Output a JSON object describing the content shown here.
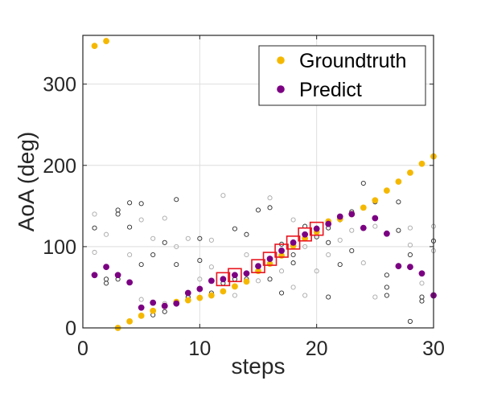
{
  "chart_data": {
    "type": "scatter",
    "xlabel": "steps",
    "ylabel": "AoA (deg)",
    "xlim": [
      0,
      30
    ],
    "ylim": [
      0,
      360
    ],
    "xticks": [
      "0",
      "10",
      "20",
      "30"
    ],
    "yticks": [
      "0",
      "100",
      "200",
      "300"
    ],
    "grid": true,
    "legend_position": "top-right",
    "series": [
      {
        "name": "Groundtruth",
        "color": "#F5B800",
        "marker": "filled-circle",
        "points": [
          [
            1,
            347
          ],
          [
            2,
            353
          ],
          [
            3,
            0
          ],
          [
            4,
            8
          ],
          [
            5,
            15
          ],
          [
            6,
            21
          ],
          [
            7,
            27
          ],
          [
            8,
            32
          ],
          [
            9,
            34
          ],
          [
            10,
            37
          ],
          [
            11,
            40
          ],
          [
            12,
            45
          ],
          [
            13,
            51
          ],
          [
            14,
            57
          ],
          [
            15,
            70
          ],
          [
            16,
            79
          ],
          [
            17,
            89
          ],
          [
            18,
            101
          ],
          [
            19,
            110
          ],
          [
            20,
            118
          ],
          [
            21,
            131
          ],
          [
            22,
            134
          ],
          [
            23,
            140
          ],
          [
            24,
            148
          ],
          [
            25,
            157
          ],
          [
            26,
            169
          ],
          [
            27,
            180
          ],
          [
            28,
            191
          ],
          [
            29,
            202
          ],
          [
            30,
            211
          ]
        ]
      },
      {
        "name": "Predict",
        "color": "#7B0082",
        "marker": "filled-circle",
        "points": [
          [
            1,
            65
          ],
          [
            2,
            75
          ],
          [
            3,
            65
          ],
          [
            4,
            56
          ],
          [
            5,
            25
          ],
          [
            6,
            31
          ],
          [
            7,
            27
          ],
          [
            8,
            30
          ],
          [
            9,
            43
          ],
          [
            10,
            48
          ],
          [
            11,
            58
          ],
          [
            12,
            60
          ],
          [
            13,
            65
          ],
          [
            14,
            67
          ],
          [
            15,
            76
          ],
          [
            16,
            85
          ],
          [
            17,
            95
          ],
          [
            18,
            105
          ],
          [
            19,
            115
          ],
          [
            20,
            122
          ],
          [
            21,
            128
          ],
          [
            22,
            137
          ],
          [
            23,
            140
          ],
          [
            24,
            123
          ],
          [
            25,
            135
          ],
          [
            26,
            116
          ],
          [
            27,
            76
          ],
          [
            28,
            75
          ],
          [
            29,
            67
          ],
          [
            30,
            40
          ]
        ]
      }
    ],
    "candidate_markers": {
      "dark": [
        [
          1,
          123
        ],
        [
          2,
          55
        ],
        [
          2,
          60
        ],
        [
          3,
          60
        ],
        [
          3,
          145
        ],
        [
          3,
          140
        ],
        [
          4,
          154
        ],
        [
          4,
          124
        ],
        [
          5,
          78
        ],
        [
          5,
          153
        ],
        [
          6,
          16
        ],
        [
          6,
          90
        ],
        [
          7,
          20
        ],
        [
          7,
          105
        ],
        [
          8,
          78
        ],
        [
          8,
          158
        ],
        [
          9,
          38
        ],
        [
          10,
          83
        ],
        [
          10,
          110
        ],
        [
          11,
          43
        ],
        [
          12,
          60
        ],
        [
          12,
          55
        ],
        [
          13,
          60
        ],
        [
          13,
          122
        ],
        [
          14,
          115
        ],
        [
          14,
          60
        ],
        [
          15,
          145
        ],
        [
          16,
          148
        ],
        [
          16,
          60
        ],
        [
          17,
          43
        ],
        [
          17,
          103
        ],
        [
          18,
          90
        ],
        [
          18,
          80
        ],
        [
          19,
          125
        ],
        [
          20,
          123
        ],
        [
          20,
          112
        ],
        [
          21,
          123
        ],
        [
          21,
          105
        ],
        [
          21,
          38
        ],
        [
          22,
          78
        ],
        [
          22,
          133
        ],
        [
          23,
          143
        ],
        [
          23,
          95
        ],
        [
          24,
          178
        ],
        [
          24,
          123
        ],
        [
          25,
          155
        ],
        [
          26,
          50
        ],
        [
          26,
          65
        ],
        [
          26,
          40
        ],
        [
          27,
          155
        ],
        [
          27,
          120
        ],
        [
          28,
          8
        ],
        [
          28,
          90
        ],
        [
          29,
          38
        ],
        [
          29,
          33
        ],
        [
          30,
          107
        ]
      ],
      "light": [
        [
          1,
          93
        ],
        [
          1,
          140
        ],
        [
          2,
          115
        ],
        [
          4,
          90
        ],
        [
          5,
          35
        ],
        [
          5,
          133
        ],
        [
          6,
          110
        ],
        [
          7,
          135
        ],
        [
          7,
          30
        ],
        [
          8,
          100
        ],
        [
          9,
          110
        ],
        [
          9,
          37
        ],
        [
          10,
          60
        ],
        [
          11,
          75
        ],
        [
          11,
          108
        ],
        [
          12,
          163
        ],
        [
          13,
          40
        ],
        [
          14,
          90
        ],
        [
          15,
          58
        ],
        [
          16,
          160
        ],
        [
          17,
          70
        ],
        [
          18,
          50
        ],
        [
          18,
          133
        ],
        [
          19,
          100
        ],
        [
          19,
          40
        ],
        [
          20,
          70
        ],
        [
          21,
          90
        ],
        [
          22,
          108
        ],
        [
          23,
          120
        ],
        [
          24,
          80
        ],
        [
          25,
          125
        ],
        [
          25,
          38
        ],
        [
          27,
          77
        ],
        [
          28,
          123
        ],
        [
          28,
          102
        ],
        [
          29,
          55
        ],
        [
          30,
          95
        ],
        [
          30,
          125
        ]
      ]
    },
    "highlighted_steps": [
      12,
      13,
      15,
      16,
      17,
      18,
      19,
      20
    ]
  }
}
